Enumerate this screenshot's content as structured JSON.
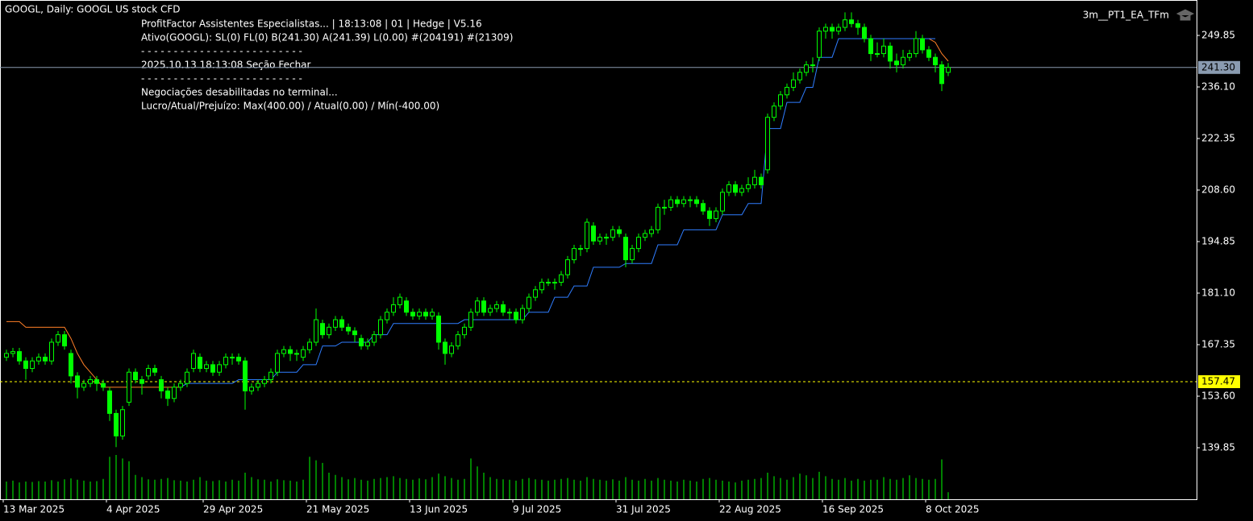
{
  "chart_data": {
    "type": "candlestick",
    "title": "GOOGL, Daily:  GOOGL US stock CFD",
    "expert": "3m__PT1_EA_TFm",
    "info_lines": [
      "ProfitFactor Assistentes Especialistas... | 18:13:08 | 01 | Hedge | V5.16",
      "Ativo(GOOGL): SL(0) FL(0) B(241.30) A(241.39) L(0.00) #(204191) #(21309)",
      "- - - - - - - - - - - - - - - - - - - - - - - - -",
      "2025.10.13 18:13:08  Seção  Fechar",
      "- - - - - - - - - - - - - - - - - - - - - - - - -",
      "Negociações desabilitadas no terminal...",
      "Lucro/Atual/Prejuízo: Max(400.00)  / Atual(0.00)  / Mín(-400.00)"
    ],
    "color": "#00ff00",
    "ylim": [
      126.1,
      259.3
    ],
    "yticks": [
      249.85,
      {
        "value": 236.1,
        "label": "236.10"
      },
      222.35,
      {
        "value": 208.6,
        "label": "208.60"
      },
      194.85,
      {
        "value": 181.1,
        "label": "181.10"
      },
      167.35,
      {
        "value": 153.6,
        "label": "153.60"
      },
      139.85
    ],
    "x_labels": [
      {
        "index": 0,
        "label": "13 Mar 2025"
      },
      {
        "index": 16,
        "label": "4 Apr 2025"
      },
      {
        "index": 31,
        "label": "29 Apr 2025"
      },
      {
        "index": 47,
        "label": "21 May 2025"
      },
      {
        "index": 63,
        "label": "13 Jun 2025"
      },
      {
        "index": 79,
        "label": "9 Jul 2025"
      },
      {
        "index": 95,
        "label": "31 Jul 2025"
      },
      {
        "index": 111,
        "label": "22 Aug 2025"
      },
      {
        "index": 127,
        "label": "16 Sep 2025"
      },
      {
        "index": 143,
        "label": "8 Oct 2025"
      }
    ],
    "bid_line": {
      "value": 241.3,
      "label": "241.30",
      "color": "#8a9bb0"
    },
    "alert_line": {
      "value": 157.47,
      "label": "157.47",
      "color": "#ffff00"
    },
    "ohlc": [
      [
        164,
        166,
        163,
        165
      ],
      [
        165,
        166.5,
        164,
        165.5
      ],
      [
        165.5,
        166.5,
        162,
        163
      ],
      [
        163,
        164,
        158,
        161
      ],
      [
        161,
        164,
        160,
        163
      ],
      [
        163,
        165,
        162,
        164
      ],
      [
        164,
        165,
        162,
        163
      ],
      [
        163,
        169,
        162,
        168
      ],
      [
        168,
        171,
        167,
        170
      ],
      [
        170,
        171,
        166,
        167
      ],
      [
        165,
        166,
        157,
        159
      ],
      [
        159,
        160,
        153,
        156
      ],
      [
        156,
        158,
        155,
        157
      ],
      [
        157,
        159,
        156,
        158
      ],
      [
        158,
        159,
        155,
        157
      ],
      [
        157,
        158,
        155,
        156
      ],
      [
        155,
        156,
        147,
        149
      ],
      [
        149,
        150,
        140,
        143
      ],
      [
        143,
        151,
        142,
        150
      ],
      [
        152,
        161,
        151,
        160
      ],
      [
        160,
        161,
        157,
        158
      ],
      [
        158,
        159,
        154,
        157
      ],
      [
        159,
        162,
        158,
        161
      ],
      [
        161,
        162,
        159,
        160
      ],
      [
        158,
        159,
        153,
        155
      ],
      [
        155,
        156,
        151,
        153
      ],
      [
        153,
        157,
        152,
        156
      ],
      [
        156,
        158,
        155,
        157
      ],
      [
        157,
        161,
        156,
        160
      ],
      [
        161,
        166,
        160,
        165
      ],
      [
        164,
        165,
        160,
        161
      ],
      [
        161,
        163,
        160,
        162
      ],
      [
        162,
        163,
        159,
        160
      ],
      [
        160,
        163,
        159,
        162
      ],
      [
        162,
        165,
        161,
        164
      ],
      [
        164,
        165,
        162,
        164
      ],
      [
        164,
        165,
        162,
        163
      ],
      [
        163,
        164,
        150,
        155
      ],
      [
        155,
        157,
        154,
        156
      ],
      [
        156,
        158,
        155,
        157
      ],
      [
        157,
        159,
        156,
        158
      ],
      [
        158,
        161,
        157,
        160
      ],
      [
        160,
        166,
        159,
        165
      ],
      [
        165,
        167,
        164,
        166
      ],
      [
        166,
        167,
        163,
        165
      ],
      [
        165,
        166,
        163,
        165
      ],
      [
        164,
        167,
        163,
        166
      ],
      [
        166,
        169,
        165,
        168
      ],
      [
        168,
        177,
        167,
        174
      ],
      [
        173,
        174,
        169,
        170
      ],
      [
        170,
        173,
        169,
        172
      ],
      [
        172,
        175,
        171,
        174
      ],
      [
        174,
        175,
        171,
        172
      ],
      [
        172,
        173,
        170,
        171
      ],
      [
        171,
        172,
        168,
        170
      ],
      [
        169,
        170,
        166,
        167
      ],
      [
        167,
        169,
        166,
        168
      ],
      [
        168,
        171,
        167,
        170
      ],
      [
        170,
        175,
        169,
        174
      ],
      [
        174,
        177,
        173,
        176
      ],
      [
        176,
        180,
        175,
        178
      ],
      [
        178,
        181,
        177,
        180
      ],
      [
        179,
        180,
        175,
        176
      ],
      [
        176,
        177,
        174,
        175
      ],
      [
        175,
        177,
        174,
        176
      ],
      [
        176,
        177,
        174,
        175
      ],
      [
        175,
        177,
        174,
        176
      ],
      [
        175,
        176,
        166,
        168
      ],
      [
        168,
        169,
        162,
        165
      ],
      [
        165,
        168,
        164,
        167
      ],
      [
        167,
        171,
        166,
        170
      ],
      [
        170,
        173,
        169,
        172
      ],
      [
        172,
        177,
        171,
        176
      ],
      [
        176,
        180,
        175,
        179
      ],
      [
        179,
        180,
        175,
        176
      ],
      [
        176,
        178,
        175,
        177
      ],
      [
        177,
        179,
        176,
        178
      ],
      [
        178,
        179,
        175,
        176
      ],
      [
        176,
        177,
        174,
        176
      ],
      [
        176,
        177,
        173,
        174
      ],
      [
        174,
        178,
        173,
        177
      ],
      [
        177,
        181,
        176,
        180
      ],
      [
        180,
        183,
        179,
        182
      ],
      [
        182,
        185,
        181,
        184
      ],
      [
        184,
        185,
        183,
        184
      ],
      [
        184,
        185,
        182,
        184
      ],
      [
        184,
        187,
        183,
        186
      ],
      [
        186,
        191,
        185,
        190
      ],
      [
        190,
        194,
        189,
        193
      ],
      [
        193,
        194,
        191,
        193
      ],
      [
        193,
        201,
        192,
        200
      ],
      [
        199,
        200,
        194,
        195
      ],
      [
        195,
        197,
        194,
        196
      ],
      [
        196,
        197,
        194,
        196
      ],
      [
        196,
        199,
        195,
        198
      ],
      [
        198,
        199,
        196,
        197
      ],
      [
        196,
        197,
        188,
        190
      ],
      [
        190,
        194,
        189,
        193
      ],
      [
        193,
        197,
        192,
        196
      ],
      [
        196,
        198,
        195,
        197
      ],
      [
        197,
        199,
        196,
        198
      ],
      [
        198,
        205,
        197,
        204
      ],
      [
        204,
        206,
        202,
        204
      ],
      [
        204,
        207,
        203,
        206
      ],
      [
        206,
        207,
        204,
        205
      ],
      [
        205,
        207,
        204,
        206
      ],
      [
        206,
        207,
        204,
        206
      ],
      [
        206,
        207,
        204,
        205
      ],
      [
        205,
        206,
        202,
        203
      ],
      [
        203,
        204,
        199,
        201
      ],
      [
        201,
        204,
        200,
        203
      ],
      [
        203,
        209,
        202,
        208
      ],
      [
        208,
        211,
        207,
        210
      ],
      [
        210,
        211,
        207,
        208
      ],
      [
        208,
        210,
        207,
        209
      ],
      [
        209,
        212,
        208,
        210
      ],
      [
        210,
        214,
        209,
        212
      ],
      [
        212,
        213,
        209,
        210
      ],
      [
        214,
        229,
        213,
        228
      ],
      [
        228,
        232,
        227,
        231
      ],
      [
        231,
        235,
        230,
        234
      ],
      [
        234,
        237,
        233,
        236
      ],
      [
        236,
        240,
        235,
        238
      ],
      [
        238,
        241,
        237,
        240
      ],
      [
        240,
        243,
        239,
        242
      ],
      [
        242,
        244,
        240,
        242
      ],
      [
        244,
        252,
        243,
        251
      ],
      [
        251,
        253,
        249,
        252
      ],
      [
        252,
        253,
        249,
        251
      ],
      [
        251,
        253,
        250,
        252
      ],
      [
        252,
        256,
        251,
        254
      ],
      [
        254,
        256,
        252,
        253
      ],
      [
        253,
        254,
        250,
        252
      ],
      [
        252,
        253,
        248,
        249
      ],
      [
        249,
        250,
        243,
        245
      ],
      [
        245,
        248,
        244,
        245
      ],
      [
        245,
        249,
        244,
        247
      ],
      [
        247,
        248,
        241,
        243
      ],
      [
        243,
        245,
        240,
        242
      ],
      [
        242,
        246,
        241,
        244
      ],
      [
        244,
        246,
        243,
        245
      ],
      [
        245,
        251,
        244,
        249
      ],
      [
        249,
        250,
        245,
        246
      ],
      [
        246,
        247,
        243,
        244
      ],
      [
        244,
        245,
        240,
        242
      ],
      [
        242,
        243,
        235,
        237
      ],
      [
        240,
        242.5,
        239,
        241.3
      ]
    ],
    "volume": [
      40,
      42,
      38,
      40,
      39,
      41,
      40,
      43,
      40,
      45,
      47,
      44,
      42,
      40,
      41,
      46,
      96,
      100,
      92,
      86,
      55,
      50,
      45,
      44,
      46,
      48,
      43,
      42,
      40,
      44,
      50,
      42,
      41,
      43,
      40,
      44,
      42,
      60,
      50,
      45,
      44,
      40,
      45,
      43,
      42,
      40,
      44,
      96,
      88,
      82,
      60,
      55,
      50,
      45,
      48,
      44,
      42,
      46,
      48,
      50,
      52,
      48,
      46,
      44,
      47,
      45,
      50,
      58,
      52,
      48,
      44,
      46,
      92,
      74,
      60,
      50,
      46,
      45,
      44,
      42,
      46,
      48,
      45,
      44,
      42,
      44,
      46,
      48,
      44,
      42,
      50,
      46,
      44,
      42,
      45,
      42,
      50,
      44,
      42,
      46,
      42,
      48,
      44,
      42,
      40,
      44,
      42,
      40,
      46,
      48,
      44,
      42,
      40,
      38,
      42,
      44,
      46,
      48,
      60,
      52,
      48,
      44,
      50,
      58,
      54,
      48,
      62,
      52,
      46,
      44,
      48,
      42,
      46,
      42,
      44,
      44,
      50,
      46,
      44,
      48,
      54,
      48,
      46,
      44,
      46,
      90,
      16
    ],
    "stop_resist": {
      "color": "#ff7f27",
      "values": [
        173.5,
        173.5,
        173.5,
        172,
        172,
        172,
        172,
        172,
        172,
        172,
        169,
        165,
        162,
        160,
        158,
        156,
        156,
        156,
        156,
        156,
        156,
        156,
        156,
        156,
        156,
        156,
        156,
        156,
        null,
        null,
        null,
        null,
        null,
        null,
        null,
        null,
        null,
        null,
        null,
        null,
        null,
        null,
        null,
        null,
        null,
        null,
        null,
        null,
        null,
        null,
        null,
        null,
        null,
        null,
        null,
        null,
        null,
        null,
        null,
        null,
        null,
        null,
        null,
        null,
        null,
        null,
        null,
        null,
        null,
        null,
        null,
        null,
        null,
        null,
        null,
        null,
        null,
        null,
        null,
        null,
        null,
        null,
        null,
        null,
        null,
        null,
        null,
        null,
        null,
        null,
        null,
        null,
        null,
        null,
        null,
        null,
        null,
        null,
        null,
        null,
        null,
        null,
        null,
        null,
        null,
        null,
        null,
        null,
        null,
        null,
        null,
        null,
        null,
        null,
        null,
        null,
        null,
        null,
        null,
        null,
        null,
        null,
        null,
        null,
        null,
        null,
        null,
        null,
        null,
        null,
        null,
        null,
        null,
        null,
        null,
        null,
        null,
        null,
        null,
        null,
        null,
        null,
        null,
        249,
        248,
        245,
        243
      ]
    },
    "stop_support": {
      "color": "#2f7dff",
      "values": [
        null,
        null,
        null,
        null,
        null,
        null,
        null,
        null,
        null,
        null,
        null,
        null,
        null,
        null,
        null,
        null,
        null,
        null,
        null,
        null,
        null,
        null,
        null,
        null,
        null,
        null,
        null,
        156,
        157,
        157,
        157,
        157,
        157,
        157,
        157,
        157,
        158,
        158,
        158,
        158,
        158,
        158,
        160,
        160,
        160,
        160,
        162,
        162,
        162,
        167,
        167,
        167,
        168,
        168,
        168,
        168,
        168,
        170,
        170,
        170,
        173,
        173,
        173,
        173,
        173,
        173,
        173,
        173,
        173,
        173,
        173,
        174,
        174,
        174,
        174,
        174,
        174,
        174,
        174,
        174,
        174,
        176,
        176,
        176,
        176,
        180,
        180,
        180,
        183,
        183,
        183,
        188,
        188,
        188,
        188,
        188,
        189,
        189,
        189,
        189,
        189,
        194,
        194,
        194,
        194,
        198,
        198,
        198,
        198,
        198,
        198,
        202,
        202,
        202,
        202,
        205,
        205,
        205,
        225,
        225,
        225,
        232,
        232,
        232,
        236,
        236,
        244,
        244,
        244,
        249,
        249,
        249,
        249,
        249,
        249,
        249,
        249,
        249,
        249,
        249,
        249,
        249,
        249,
        249,
        249,
        null,
        null,
        null
      ]
    }
  }
}
